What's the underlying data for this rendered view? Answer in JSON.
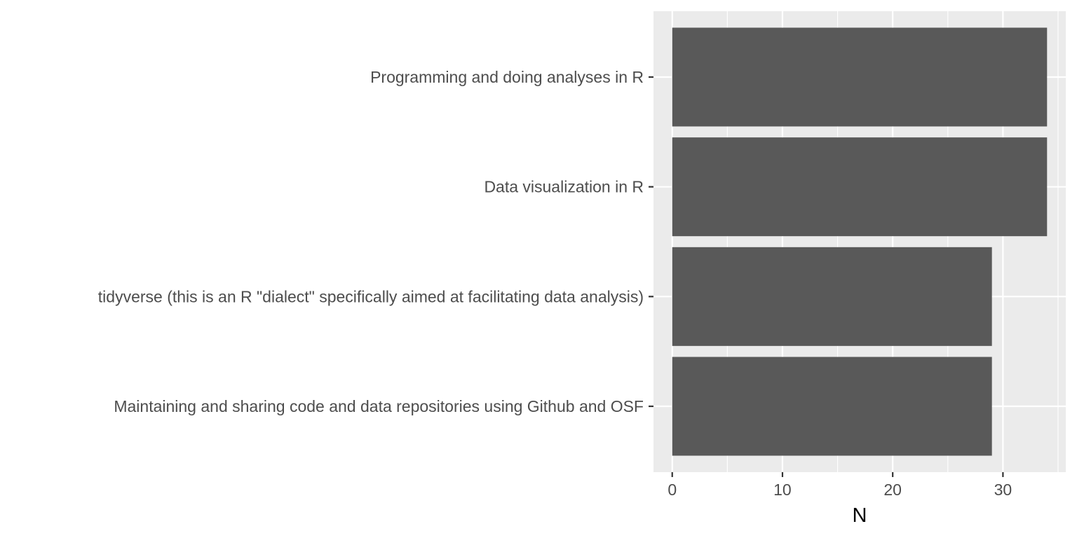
{
  "chart_data": {
    "type": "bar",
    "orientation": "horizontal",
    "categories": [
      "Programming and doing analyses in R",
      "Data visualization in R",
      "tidyverse (this is an R \"dialect\" specifically aimed at facilitating data analysis)",
      "Maintaining and sharing code and data repositories using Github and OSF"
    ],
    "values": [
      34,
      34,
      29,
      29
    ],
    "xlabel": "N",
    "ylabel": "",
    "xlim": [
      -1.7,
      35.7
    ],
    "x_ticks": [
      0,
      10,
      20,
      30
    ],
    "grid": true,
    "colors": {
      "panel_background": "#EBEBEB",
      "grid_major": "#FFFFFF",
      "bar_fill": "#595959",
      "tick_text": "#4D4D4D",
      "axis_title": "#000000",
      "tick_mark": "#333333"
    }
  }
}
